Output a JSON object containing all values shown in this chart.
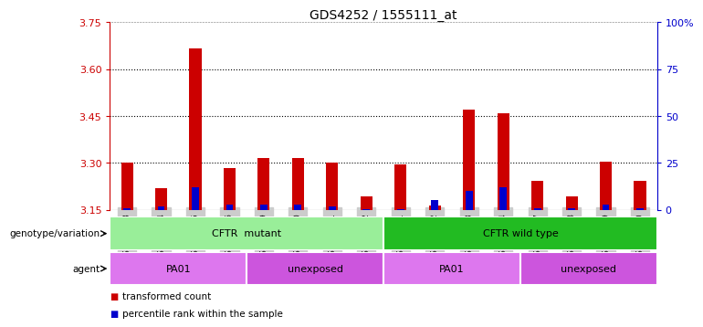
{
  "title": "GDS4252 / 1555111_at",
  "samples": [
    "GSM754983",
    "GSM754984",
    "GSM754985",
    "GSM754986",
    "GSM754979",
    "GSM754980",
    "GSM754981",
    "GSM754982",
    "GSM754991",
    "GSM754992",
    "GSM754993",
    "GSM754994",
    "GSM754987",
    "GSM754988",
    "GSM754989",
    "GSM754990"
  ],
  "red_values": [
    3.302,
    3.218,
    3.665,
    3.283,
    3.315,
    3.315,
    3.3,
    3.192,
    3.295,
    3.165,
    3.47,
    3.46,
    3.242,
    3.192,
    3.305,
    3.242
  ],
  "blue_values": [
    1,
    2,
    12,
    3,
    3,
    3,
    2,
    0.5,
    0.5,
    5,
    10,
    12,
    1,
    1,
    3,
    1
  ],
  "ylim_left": [
    3.15,
    3.75
  ],
  "ylim_right": [
    0,
    100
  ],
  "yticks_left": [
    3.15,
    3.3,
    3.45,
    3.6,
    3.75
  ],
  "yticks_right": [
    0,
    25,
    50,
    75,
    100
  ],
  "grid_values": [
    3.3,
    3.45,
    3.6
  ],
  "bar_color": "#cc0000",
  "blue_color": "#0000cc",
  "plot_bg": "#ffffff",
  "fig_bg": "#ffffff",
  "tick_bg": "#d0d0d0",
  "groups": [
    {
      "label": "CFTR  mutant",
      "start": 0,
      "end": 8,
      "color": "#99ee99"
    },
    {
      "label": "CFTR wild type",
      "start": 8,
      "end": 16,
      "color": "#22bb22"
    }
  ],
  "agents": [
    {
      "label": "PA01",
      "start": 0,
      "end": 4,
      "color": "#dd77ee"
    },
    {
      "label": "unexposed",
      "start": 4,
      "end": 8,
      "color": "#cc55dd"
    },
    {
      "label": "PA01",
      "start": 8,
      "end": 12,
      "color": "#dd77ee"
    },
    {
      "label": "unexposed",
      "start": 12,
      "end": 16,
      "color": "#cc55dd"
    }
  ],
  "legend_items": [
    {
      "label": "transformed count",
      "color": "#cc0000"
    },
    {
      "label": "percentile rank within the sample",
      "color": "#0000cc"
    }
  ],
  "genotype_label": "genotype/variation",
  "agent_label": "agent",
  "left_axis_color": "#cc0000",
  "right_axis_color": "#0000cc"
}
